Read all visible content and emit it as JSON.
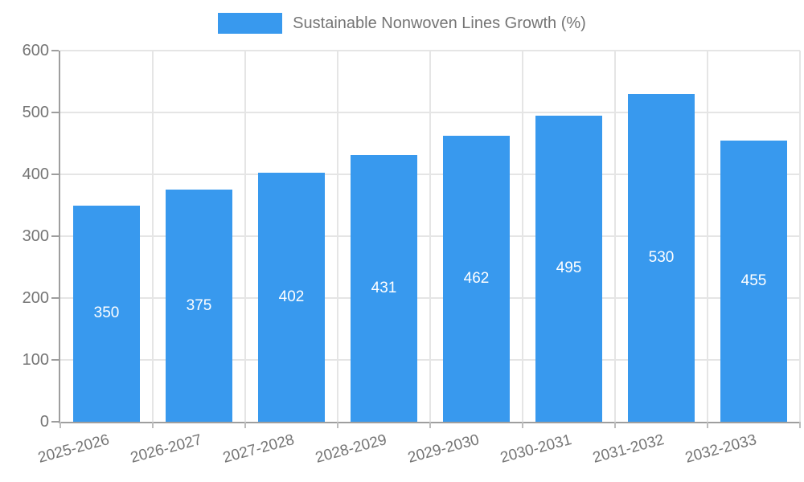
{
  "chart_data": {
    "type": "bar",
    "title": "Sustainable Nonwoven Lines Growth (%)",
    "legend": {
      "label": "Sustainable Nonwoven Lines Growth (%)",
      "position": "top-center"
    },
    "categories": [
      "2025-2026",
      "2026-2027",
      "2027-2028",
      "2028-2029",
      "2029-2030",
      "2030-2031",
      "2031-2032",
      "2032-2033"
    ],
    "series": [
      {
        "name": "Sustainable Nonwoven Lines Growth (%)",
        "values": [
          350,
          375,
          402,
          431,
          462,
          495,
          530,
          455
        ]
      }
    ],
    "value_labels": [
      "350",
      "375",
      "402",
      "431",
      "462",
      "495",
      "530",
      "455"
    ],
    "value_label_position": "inside-center",
    "xlabel": "",
    "ylabel": "",
    "ylim": [
      0,
      600
    ],
    "yticks": [
      0,
      100,
      200,
      300,
      400,
      500,
      600
    ],
    "grid": {
      "horizontal": true,
      "vertical": true
    },
    "x_label_rotation_deg": -15,
    "colors": {
      "bar": "#3899ee",
      "grid": "#e5e5e5",
      "axis": "#9e9e9e",
      "tick_text": "#757575",
      "legend_text": "#757575",
      "value_label_text": "#ffffff",
      "background": "#ffffff"
    }
  }
}
